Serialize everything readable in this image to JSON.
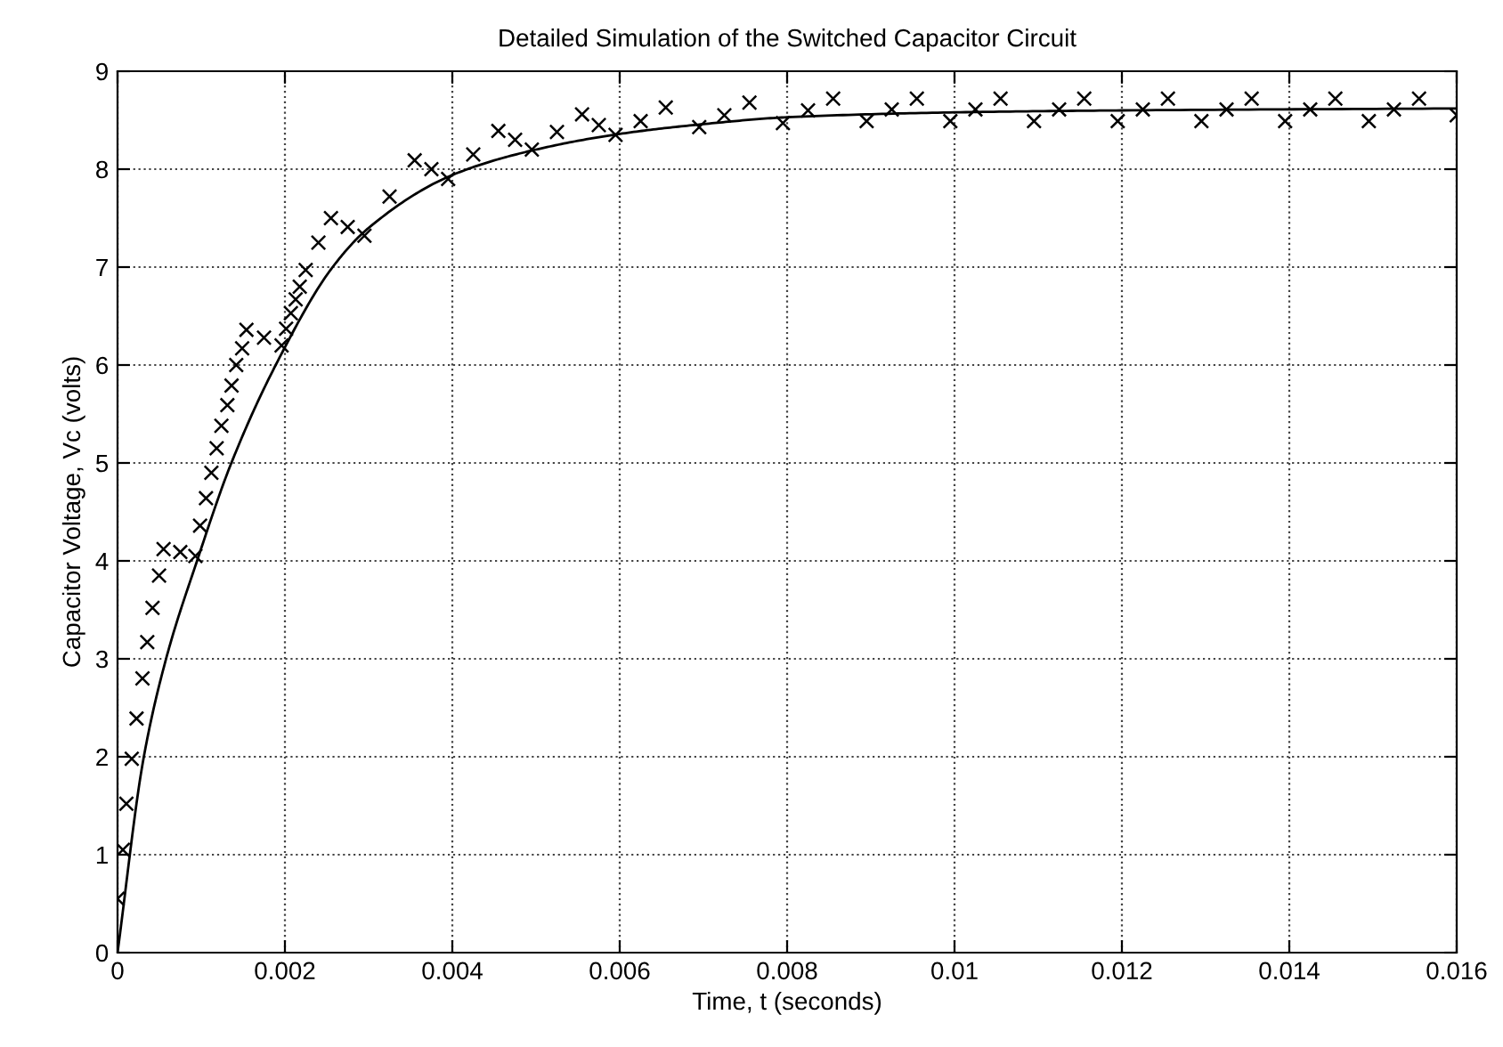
{
  "chart_data": {
    "type": "line",
    "title": "Detailed Simulation of the Switched Capacitor Circuit",
    "xlabel": "Time, t (seconds)",
    "ylabel": "Capacitor Voltage, Vc (volts)",
    "xlim": [
      0,
      0.016
    ],
    "xticks": [
      0,
      0.002,
      0.004,
      0.006,
      0.008,
      0.01,
      0.012,
      0.014,
      0.016
    ],
    "ylim": [
      0,
      9
    ],
    "yticks": [
      0,
      1,
      2,
      3,
      4,
      5,
      6,
      7,
      8,
      9
    ],
    "grid": true,
    "series": [
      {
        "type": "scatter",
        "color": "#000000",
        "marker": "cross",
        "x": [
          0,
          6.4e-05,
          0.000106,
          0.00017,
          0.000227,
          0.000298,
          0.000355,
          0.000418,
          0.000496,
          0.00055,
          0.00075,
          0.00093,
          0.000986,
          0.001057,
          0.001121,
          0.001184,
          0.001241,
          0.001312,
          0.001362,
          0.001418,
          0.001489,
          0.00154,
          0.00175,
          0.00196,
          0.002014,
          0.002071,
          0.002128,
          0.002177,
          0.002248,
          0.0024,
          0.00255,
          0.00275,
          0.00295,
          0.00325,
          0.00355,
          0.00375,
          0.00395,
          0.00425,
          0.00455,
          0.00475,
          0.00495,
          0.00525,
          0.00555,
          0.00575,
          0.00595,
          0.00625,
          0.00655,
          0.00695,
          0.00725,
          0.00755,
          0.00795,
          0.00825,
          0.00855,
          0.00895,
          0.00925,
          0.00955,
          0.00995,
          0.01025,
          0.01055,
          0.01095,
          0.01125,
          0.01155,
          0.01195,
          0.01225,
          0.01255,
          0.01295,
          0.01325,
          0.01355,
          0.01395,
          0.01425,
          0.01455,
          0.01495,
          0.01525,
          0.01555,
          0.016
        ],
        "values": [
          0.55,
          1.05,
          1.52,
          1.98,
          2.39,
          2.8,
          3.17,
          3.52,
          3.85,
          4.12,
          4.09,
          4.05,
          4.36,
          4.64,
          4.9,
          5.15,
          5.38,
          5.59,
          5.79,
          6.0,
          6.17,
          6.36,
          6.28,
          6.2,
          6.37,
          6.53,
          6.67,
          6.8,
          6.97,
          7.25,
          7.5,
          7.41,
          7.32,
          7.72,
          8.09,
          8.0,
          7.9,
          8.15,
          8.39,
          8.3,
          8.2,
          8.38,
          8.56,
          8.45,
          8.35,
          8.49,
          8.63,
          8.43,
          8.55,
          8.68,
          8.47,
          8.6,
          8.72,
          8.49,
          8.61,
          8.72,
          8.49,
          8.61,
          8.72,
          8.49,
          8.61,
          8.72,
          8.49,
          8.61,
          8.72,
          8.49,
          8.61,
          8.72,
          8.49,
          8.61,
          8.72,
          8.49,
          8.61,
          8.72,
          8.55
        ]
      },
      {
        "color": "#000000",
        "line_style": "solid",
        "marker": "none",
        "x": [
          0,
          0.00031,
          0.00058,
          0.00095,
          0.00136,
          0.00189,
          0.00257,
          0.003,
          0.004,
          0.005,
          0.006,
          0.007,
          0.008,
          0.01,
          0.012,
          0.016
        ],
        "values": [
          0,
          1.98,
          3,
          4,
          5,
          6,
          7,
          7.4,
          7.94,
          8.2,
          8.36,
          8.46,
          8.53,
          8.58,
          8.6,
          8.62
        ]
      }
    ]
  }
}
